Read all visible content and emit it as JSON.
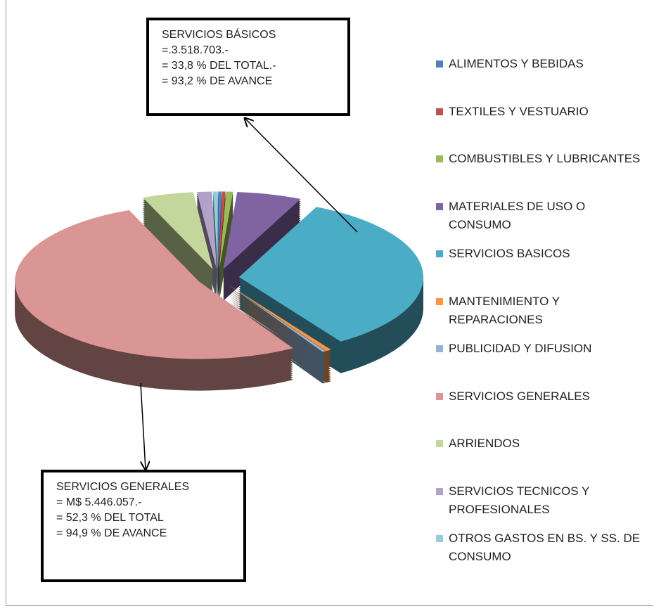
{
  "chart_data": {
    "type": "pie",
    "categories": [
      "ALIMENTOS Y BEBIDAS",
      "TEXTILES Y VESTUARIO",
      "COMBUSTIBLES Y LUBRICANTES",
      "MATERIALES DE USO O CONSUMO",
      "SERVICIOS BASICOS",
      "MANTENIMIENTO Y REPARACIONES",
      "PUBLICIDAD Y DIFUSION",
      "SERVICIOS GENERALES",
      "ARRIENDOS",
      "SERVICIOS TECNICOS Y PROFESIONALES",
      "OTROS GASTOS EN BS. Y SS. DE CONSUMO"
    ],
    "values": [
      0.3,
      0.3,
      0.6,
      5.7,
      33.8,
      0.5,
      0.3,
      52.3,
      4.5,
      1.3,
      0.4
    ],
    "colors": [
      "#4f81bd",
      "#c0504d",
      "#9bbb59",
      "#8064a2",
      "#4bacc6",
      "#f79646",
      "#95b3d7",
      "#d99694",
      "#c3d69b",
      "#b3a2c7",
      "#93cddd"
    ],
    "annotations": [
      {
        "lines": [
          "SERVICIOS BÁSICOS",
          "=.3.518.703.-",
          "= 33,8 % DEL TOTAL.-",
          "= 93,2 % DE AVANCE"
        ]
      },
      {
        "lines": [
          "SERVICIOS GENERALES",
          "= M$ 5.446.057.-",
          "= 52,3 % DEL TOTAL",
          "= 94,9 % DE AVANCE"
        ]
      }
    ]
  }
}
